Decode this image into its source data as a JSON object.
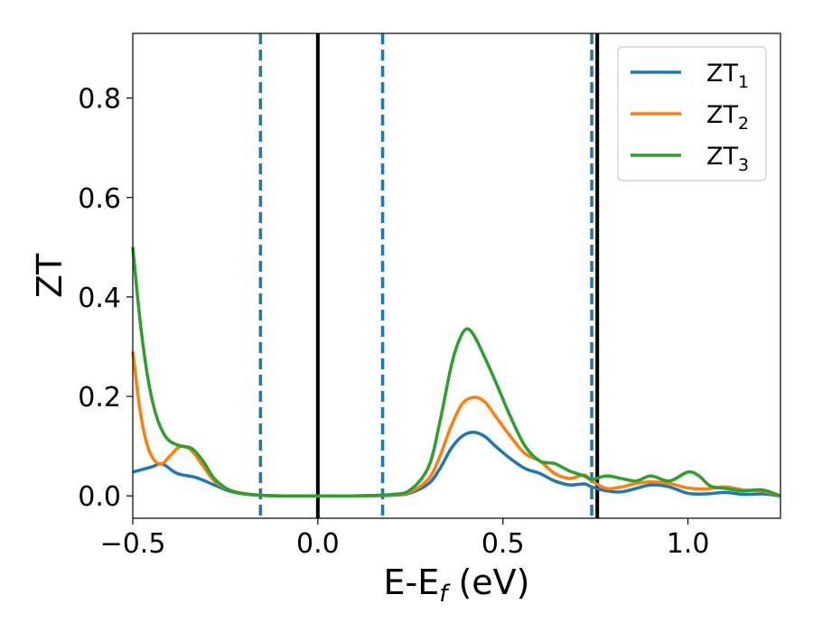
{
  "chart_data": {
    "type": "line",
    "xlabel_main": "E-E",
    "xlabel_sub": "f",
    "xlabel_unit": " (eV)",
    "ylabel": "ZT",
    "xlim": [
      -0.5,
      1.25
    ],
    "ylim": [
      -0.045,
      0.93
    ],
    "x_ticks": [
      -0.5,
      0.0,
      0.5,
      1.0
    ],
    "x_tick_labels": [
      "−0.5",
      "0.0",
      "0.5",
      "1.0"
    ],
    "y_ticks": [
      0.0,
      0.2,
      0.4,
      0.6,
      0.8
    ],
    "y_tick_labels": [
      "0.0",
      "0.2",
      "0.4",
      "0.6",
      "0.8"
    ],
    "grid": false,
    "legend_position": "top-right",
    "vertical_lines": [
      {
        "x": 0.0,
        "style": "solid",
        "color": "#000000"
      },
      {
        "x": 0.755,
        "style": "solid",
        "color": "#000000"
      },
      {
        "x": -0.155,
        "style": "dashed",
        "color": "#1f77b4"
      },
      {
        "x": 0.175,
        "style": "dashed",
        "color": "#1f77b4"
      },
      {
        "x": 0.74,
        "style": "dashed",
        "color": "#1f77b4"
      }
    ],
    "series": [
      {
        "name": "ZT",
        "subscript": "1",
        "color": "#1f77b4",
        "x": [
          -0.5,
          -0.45,
          -0.42,
          -0.38,
          -0.33,
          -0.28,
          -0.24,
          -0.2,
          -0.15,
          -0.1,
          0.0,
          0.1,
          0.2,
          0.25,
          0.3,
          0.33,
          0.36,
          0.39,
          0.42,
          0.45,
          0.48,
          0.52,
          0.56,
          0.6,
          0.64,
          0.68,
          0.72,
          0.74,
          0.78,
          0.82,
          0.86,
          0.9,
          0.95,
          1.0,
          1.05,
          1.1,
          1.15,
          1.2,
          1.25
        ],
        "y": [
          0.048,
          0.058,
          0.064,
          0.045,
          0.037,
          0.022,
          0.01,
          0.004,
          0.001,
          0.0,
          0.0,
          0.0,
          0.001,
          0.006,
          0.025,
          0.055,
          0.095,
          0.12,
          0.128,
          0.12,
          0.1,
          0.075,
          0.055,
          0.045,
          0.03,
          0.022,
          0.024,
          0.018,
          0.01,
          0.008,
          0.015,
          0.022,
          0.018,
          0.005,
          0.004,
          0.007,
          0.003,
          0.004,
          0.0
        ]
      },
      {
        "name": "ZT",
        "subscript": "2",
        "color": "#ff7f0e",
        "x": [
          -0.5,
          -0.48,
          -0.46,
          -0.44,
          -0.42,
          -0.4,
          -0.37,
          -0.34,
          -0.31,
          -0.28,
          -0.24,
          -0.2,
          -0.15,
          -0.1,
          0.0,
          0.1,
          0.2,
          0.25,
          0.3,
          0.33,
          0.36,
          0.39,
          0.42,
          0.45,
          0.48,
          0.52,
          0.56,
          0.6,
          0.64,
          0.68,
          0.72,
          0.74,
          0.78,
          0.82,
          0.86,
          0.9,
          0.95,
          1.0,
          1.05,
          1.1,
          1.15,
          1.2,
          1.25
        ],
        "y": [
          0.29,
          0.17,
          0.1,
          0.07,
          0.065,
          0.08,
          0.1,
          0.09,
          0.06,
          0.03,
          0.012,
          0.005,
          0.001,
          0.0,
          0.0,
          0.0,
          0.002,
          0.008,
          0.035,
          0.08,
          0.14,
          0.185,
          0.198,
          0.19,
          0.16,
          0.12,
          0.085,
          0.07,
          0.045,
          0.035,
          0.042,
          0.03,
          0.015,
          0.018,
          0.025,
          0.028,
          0.025,
          0.016,
          0.014,
          0.018,
          0.012,
          0.01,
          0.0
        ]
      },
      {
        "name": "ZT",
        "subscript": "3",
        "color": "#2ca02c",
        "x": [
          -0.5,
          -0.48,
          -0.46,
          -0.44,
          -0.42,
          -0.4,
          -0.37,
          -0.34,
          -0.31,
          -0.28,
          -0.24,
          -0.2,
          -0.15,
          -0.1,
          0.0,
          0.1,
          0.2,
          0.25,
          0.3,
          0.33,
          0.36,
          0.38,
          0.4,
          0.42,
          0.45,
          0.48,
          0.52,
          0.56,
          0.6,
          0.64,
          0.68,
          0.72,
          0.74,
          0.78,
          0.82,
          0.86,
          0.9,
          0.95,
          1.0,
          1.03,
          1.06,
          1.1,
          1.15,
          1.2,
          1.25
        ],
        "y": [
          0.5,
          0.35,
          0.24,
          0.17,
          0.13,
          0.11,
          0.1,
          0.095,
          0.07,
          0.035,
          0.012,
          0.004,
          0.001,
          0.0,
          0.0,
          0.0,
          0.003,
          0.012,
          0.06,
          0.15,
          0.26,
          0.31,
          0.335,
          0.325,
          0.28,
          0.23,
          0.16,
          0.1,
          0.07,
          0.065,
          0.05,
          0.04,
          0.033,
          0.04,
          0.035,
          0.03,
          0.04,
          0.03,
          0.048,
          0.04,
          0.02,
          0.015,
          0.01,
          0.012,
          0.0
        ]
      }
    ]
  }
}
